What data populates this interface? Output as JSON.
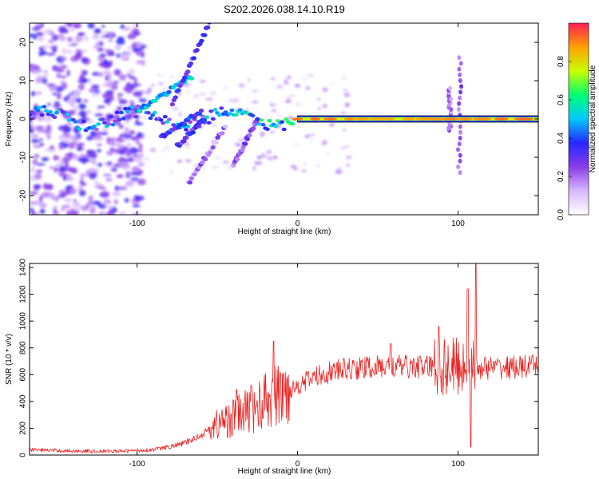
{
  "title": "S202.2026.038.14.10.R19",
  "colors": {
    "background": "#ffffff",
    "axis": "#000000",
    "snr_line": "#ee2222",
    "noise": "#9a66ee",
    "ridge_outline": "#000000"
  },
  "chart_data": [
    {
      "type": "heatmap",
      "name": "spectrogram",
      "title": "S202.2026.038.14.10.R19",
      "xlabel": "Height of straight line (km)",
      "ylabel": "Frequency (Hz)",
      "xlim": [
        -167,
        150
      ],
      "ylim": [
        -25,
        25
      ],
      "xticks": [
        -100,
        0,
        100
      ],
      "yticks": [
        -20,
        -10,
        0,
        10,
        20
      ],
      "colorbar": {
        "label": "Normalized spectral amplitude",
        "range": [
          0,
          1
        ],
        "ticks": [
          0.0,
          0.2,
          0.4,
          0.6,
          0.8
        ],
        "colormap": [
          "#ffffff",
          "#d8b8ff",
          "#8a3ce8",
          "#2828ff",
          "#00c8ff",
          "#00ff70",
          "#c8ff00",
          "#ffa000",
          "#ff1e56"
        ]
      },
      "ridge": {
        "x_start": 0,
        "x_end": 150,
        "frequency_hz": 0,
        "amplitude": 0.9
      },
      "features": [
        {
          "kind": "branch",
          "from": [
            -100,
            2
          ],
          "to": [
            -66,
            11
          ],
          "amplitude": 0.5
        },
        {
          "kind": "branch",
          "from": [
            -78,
            4
          ],
          "to": [
            -55,
            25
          ],
          "amplitude": 0.3
        },
        {
          "kind": "branch",
          "from": [
            -85,
            -5
          ],
          "to": [
            -60,
            2
          ],
          "amplitude": 0.35
        },
        {
          "kind": "branch",
          "from": [
            -75,
            -7
          ],
          "to": [
            -58,
            0
          ],
          "amplitude": 0.3
        },
        {
          "kind": "branch",
          "from": [
            -68,
            -17
          ],
          "to": [
            -45,
            -2
          ],
          "amplitude": 0.2
        },
        {
          "kind": "branch",
          "from": [
            -40,
            -12
          ],
          "to": [
            -25,
            0
          ],
          "amplitude": 0.25
        },
        {
          "kind": "spike",
          "x": 101,
          "from_hz": -14,
          "to_hz": 16,
          "amplitude": 0.3
        },
        {
          "kind": "spike",
          "x": 95,
          "from_hz": -3,
          "to_hz": 8,
          "amplitude": 0.25
        }
      ]
    },
    {
      "type": "line",
      "name": "snr",
      "title": "",
      "xlabel": "Height of straight line (km)",
      "ylabel": "SNR (10 * v/v)",
      "xlim": [
        -167,
        150
      ],
      "ylim": [
        0,
        1430
      ],
      "xticks": [
        -100,
        0,
        100
      ],
      "yticks": [
        0,
        200,
        400,
        600,
        800,
        1000,
        1200,
        1400
      ],
      "envelope": {
        "x": [
          -167,
          -140,
          -110,
          -90,
          -80,
          -70,
          -60,
          -50,
          -40,
          -30,
          -20,
          -10,
          0,
          10,
          20,
          30,
          40,
          60,
          80,
          100,
          120,
          150
        ],
        "y": [
          40,
          30,
          28,
          40,
          60,
          90,
          150,
          230,
          280,
          330,
          400,
          450,
          520,
          580,
          620,
          640,
          650,
          660,
          660,
          660,
          650,
          660
        ]
      },
      "spikes": [
        {
          "x": -38,
          "y": 490
        },
        {
          "x": -29,
          "y": 520
        },
        {
          "x": -15,
          "y": 850
        },
        {
          "x": 58,
          "y": 830
        },
        {
          "x": 88,
          "y": 960
        },
        {
          "x": 106,
          "y": 1240
        },
        {
          "x": 111,
          "y": 1430
        },
        {
          "x": 108,
          "y": 60
        }
      ]
    }
  ]
}
